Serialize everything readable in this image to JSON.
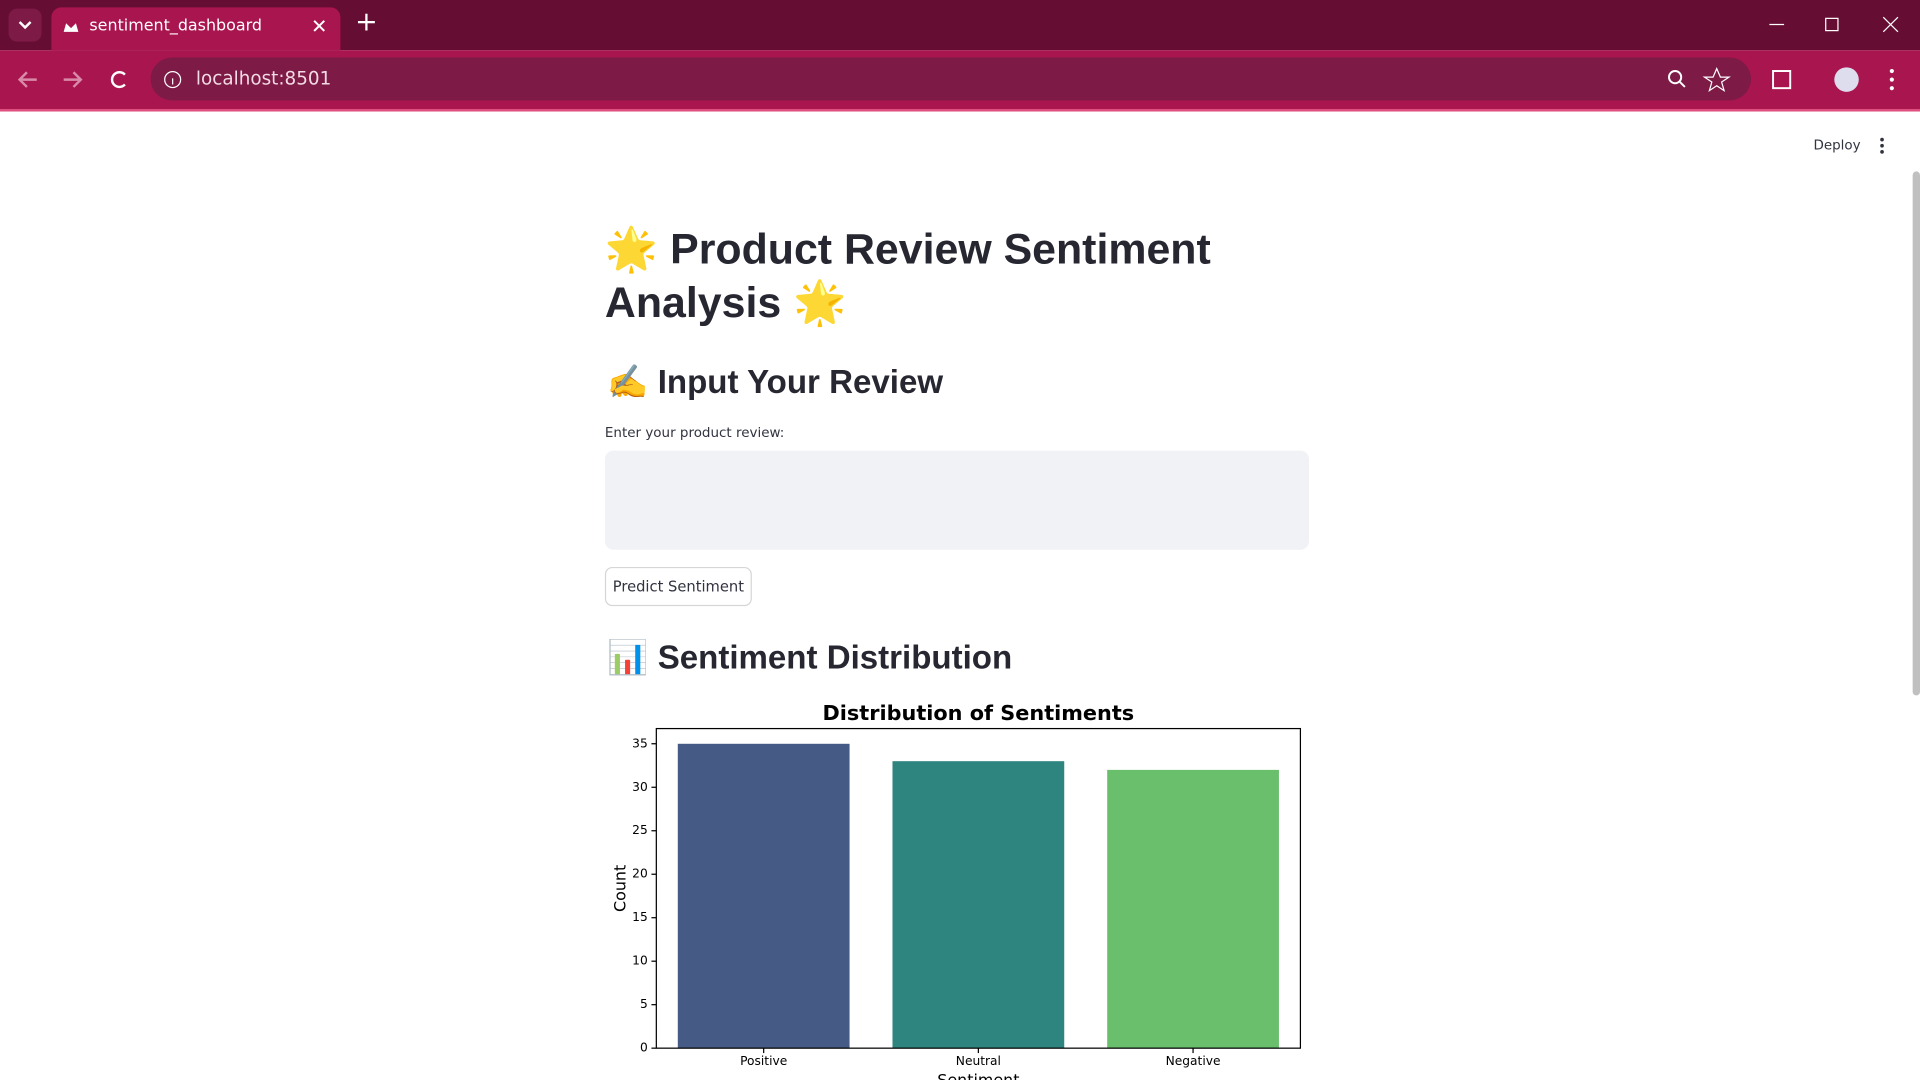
{
  "browser": {
    "tab_title": "sentiment_dashboard",
    "url": "localhost:8501"
  },
  "app": {
    "deploy": "Deploy",
    "title": "🌟 Product Review Sentiment Analysis 🌟",
    "input_header": "✍️ Input Your Review",
    "input_label": "Enter your product review:",
    "button": "Predict Sentiment",
    "chart_header": "📊 Sentiment Distribution"
  },
  "chart_data": {
    "type": "bar",
    "title": "Distribution of Sentiments",
    "x_label": "Sentiment",
    "y_label": "Count",
    "categories": [
      "Positive",
      "Neutral",
      "Negative"
    ],
    "values": [
      35,
      33,
      32
    ],
    "colors": [
      "#455a84",
      "#2e8580",
      "#6abf6d"
    ],
    "ylim": [
      0,
      36.75
    ],
    "yticks": [
      0,
      5,
      10,
      15,
      20,
      25,
      30,
      35
    ],
    "grid": false
  }
}
